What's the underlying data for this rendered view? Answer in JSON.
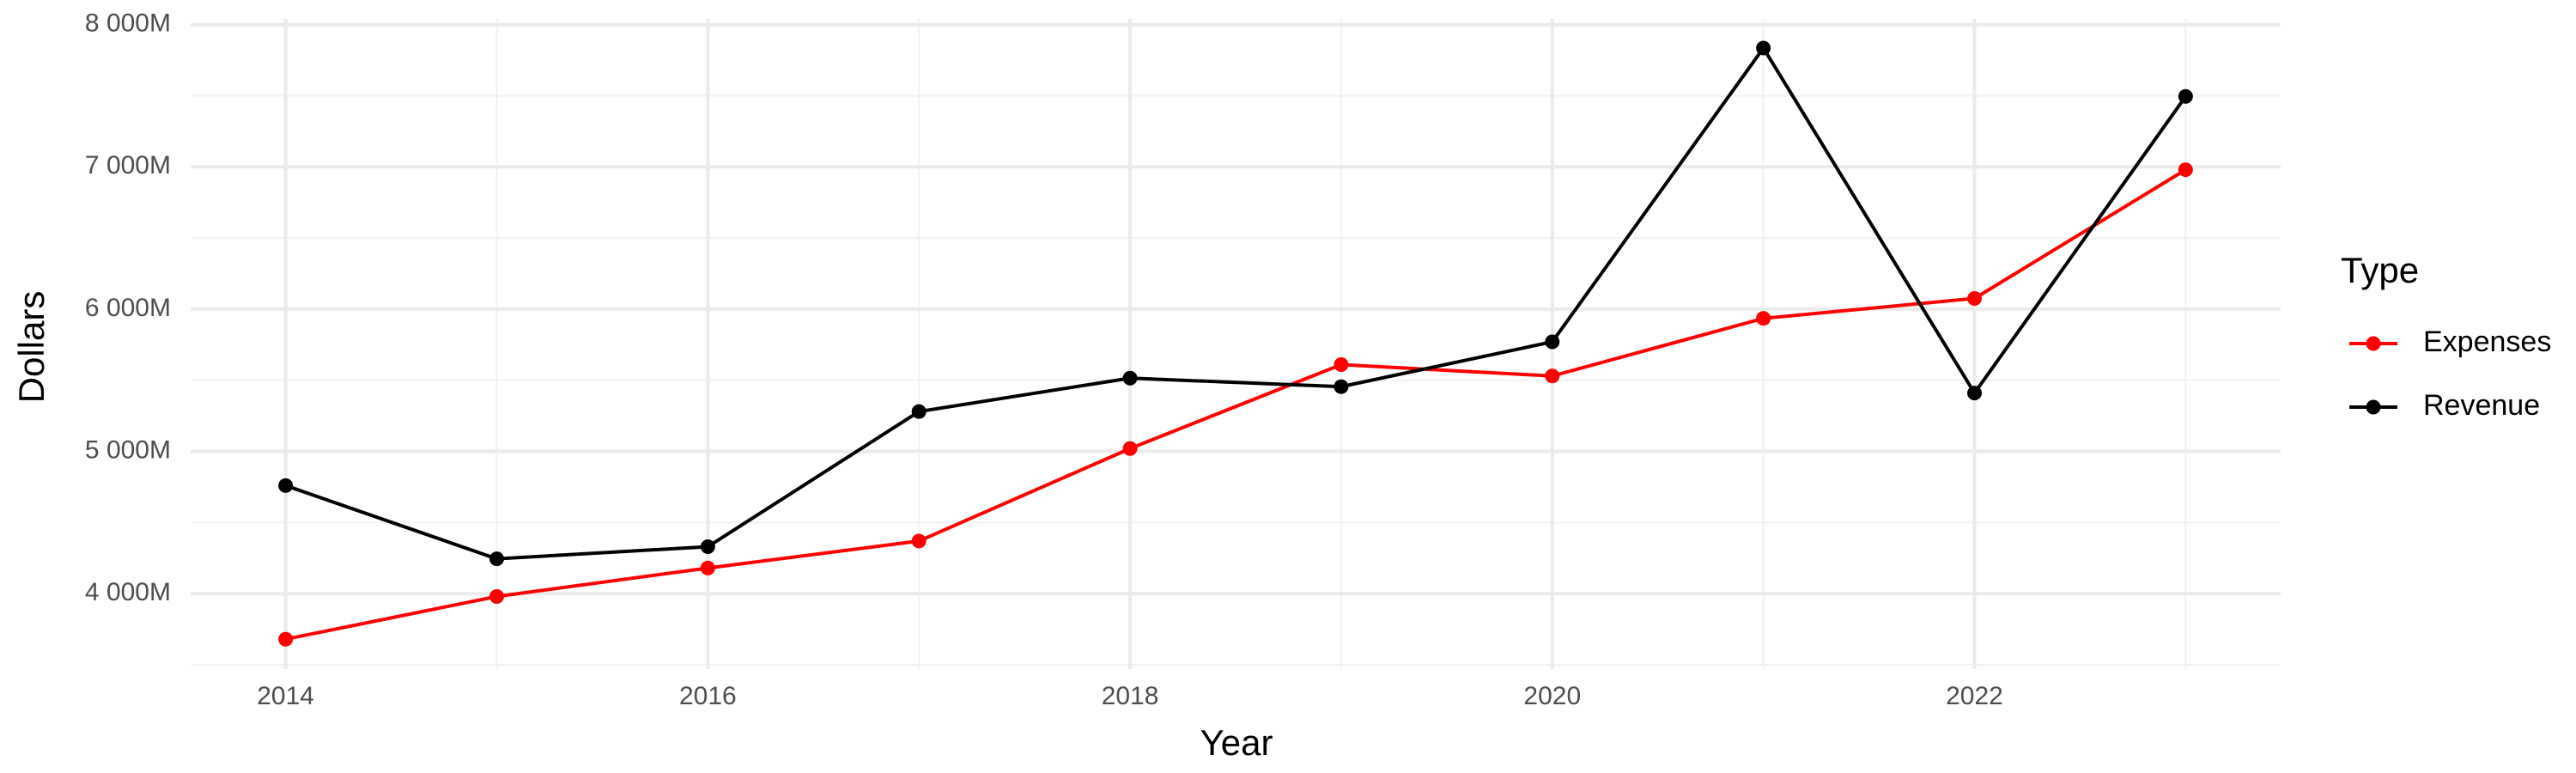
{
  "chart_data": {
    "type": "line",
    "x_label": "Year",
    "y_label": "Dollars",
    "legend_title": "Type",
    "x": [
      2014,
      2015,
      2016,
      2017,
      2018,
      2019,
      2020,
      2021,
      2022,
      2023
    ],
    "series": [
      {
        "name": "Expenses",
        "color": "#ff0000",
        "values": [
          3680,
          3980,
          4180,
          4370,
          5020,
          5610,
          5530,
          5935,
          6075,
          6980
        ]
      },
      {
        "name": "Revenue",
        "color": "#000000",
        "values": [
          4760,
          4245,
          4330,
          5280,
          5515,
          5455,
          5770,
          7835,
          5410,
          7495
        ]
      }
    ],
    "xlim": [
      2013.55,
      2023.45
    ],
    "xticks": [
      2014,
      2016,
      2018,
      2020,
      2022
    ],
    "ylim": [
      3470,
      8040
    ],
    "yticks": [
      {
        "value": 4000,
        "label": "4 000M"
      },
      {
        "value": 5000,
        "label": "5 000M"
      },
      {
        "value": 6000,
        "label": "6 000M"
      },
      {
        "value": 7000,
        "label": "7 000M"
      },
      {
        "value": 8000,
        "label": "8 000M"
      }
    ],
    "grid": true,
    "legend_position": "right"
  }
}
